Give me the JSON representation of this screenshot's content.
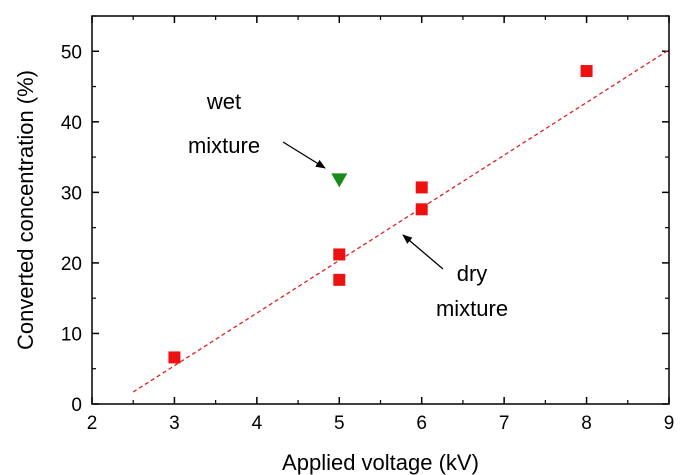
{
  "chart_data": {
    "type": "scatter",
    "xlabel": "Applied voltage (kV)",
    "ylabel": "Converted concentration (%)",
    "xlim": [
      2,
      9
    ],
    "ylim": [
      0,
      55
    ],
    "xticks": [
      "2",
      "3",
      "4",
      "5",
      "6",
      "7",
      "8",
      "9"
    ],
    "yticks": [
      "0",
      "10",
      "20",
      "30",
      "40",
      "50"
    ],
    "grid": false,
    "series": [
      {
        "marker": "square",
        "color": "#ee1111",
        "points": [
          {
            "x": 3,
            "y": 6.6
          },
          {
            "x": 5,
            "y": 21.2
          },
          {
            "x": 5,
            "y": 17.6
          },
          {
            "x": 6,
            "y": 30.7
          },
          {
            "x": 6,
            "y": 27.6
          },
          {
            "x": 8,
            "y": 47.2
          }
        ]
      },
      {
        "marker": "triangle-down",
        "color": "#1a8a1a",
        "points": [
          {
            "x": 5,
            "y": 31.7
          }
        ]
      }
    ],
    "fit_line": {
      "style": "dashed",
      "color": "#dd2222",
      "x": [
        2.5,
        9
      ],
      "y": [
        1.7,
        50.2
      ]
    },
    "annotations": [
      {
        "lines": [
          "wet",
          "mixture"
        ],
        "target_series": 1
      },
      {
        "lines": [
          "dry",
          "mixture"
        ],
        "target_series": 0
      }
    ]
  }
}
